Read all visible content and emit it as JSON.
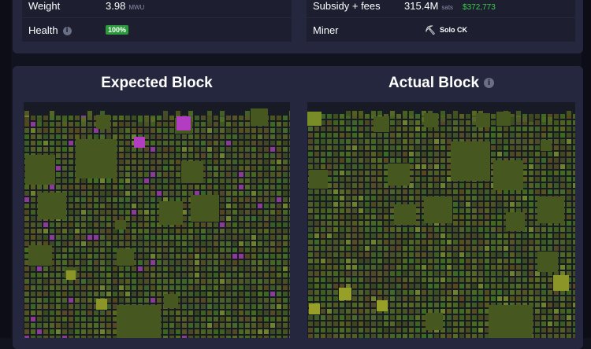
{
  "stats": {
    "weight": {
      "label": "Weight",
      "value": "3.98",
      "unit": "MWU"
    },
    "health": {
      "label": "Health",
      "value": "100%"
    },
    "subsidy": {
      "label": "Subsidy + fees",
      "value": "315.4M",
      "unit": "sats",
      "usd": "$372,773"
    },
    "miner": {
      "label": "Miner",
      "value": "Solo CK"
    }
  },
  "blocks": {
    "expected": {
      "title": "Expected Block"
    },
    "actual": {
      "title": "Actual Block"
    }
  },
  "colors": {
    "panel": "#24273e",
    "tx_green": "#4e5a22",
    "tx_bright": "#8c9a2c",
    "tx_purple": "#b23dc1",
    "health_green": "#2a9a3b",
    "usd_green": "#3bcc49"
  },
  "icons": {
    "info": "info-icon",
    "miner": "pickaxe-icon"
  }
}
